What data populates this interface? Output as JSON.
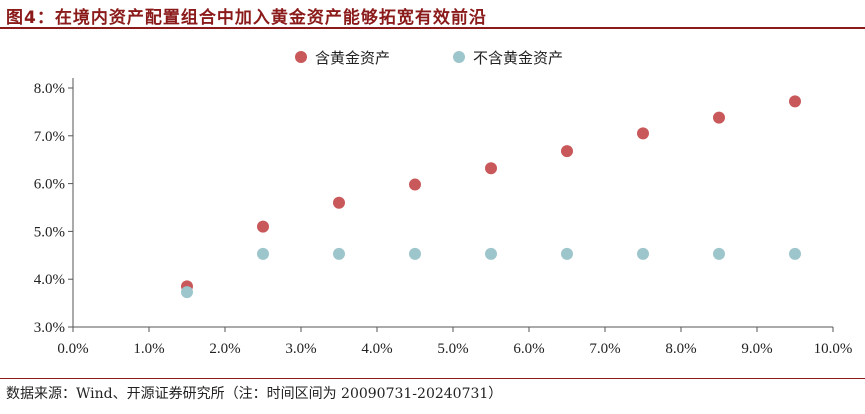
{
  "header": {
    "title": "图4：在境内资产配置组合中加入黄金资产能够拓宽有效前沿"
  },
  "footer": {
    "source": "数据来源：Wind、开源证券研究所（注：时间区间为 20090731-20240731）"
  },
  "chart_data": {
    "type": "scatter",
    "title": "",
    "xlabel": "",
    "ylabel": "",
    "xlim": [
      0.0,
      10.0
    ],
    "ylim": [
      3.0,
      8.0
    ],
    "x_ticks": [
      "0.0%",
      "1.0%",
      "2.0%",
      "3.0%",
      "4.0%",
      "5.0%",
      "6.0%",
      "7.0%",
      "8.0%",
      "9.0%",
      "10.0%"
    ],
    "y_ticks": [
      "3.0%",
      "4.0%",
      "5.0%",
      "6.0%",
      "7.0%",
      "8.0%"
    ],
    "grid": false,
    "legend_position": "top-center",
    "series": [
      {
        "name": "含黄金资产",
        "color": "#c9585a",
        "x": [
          1.5,
          2.5,
          3.5,
          4.5,
          5.5,
          6.5,
          7.5,
          8.5,
          9.5
        ],
        "y": [
          3.85,
          5.1,
          5.6,
          5.98,
          6.32,
          6.68,
          7.05,
          7.38,
          7.72
        ]
      },
      {
        "name": "不含黄金资产",
        "color": "#9dc6cc",
        "x": [
          1.5,
          2.5,
          3.5,
          4.5,
          5.5,
          6.5,
          7.5,
          8.5,
          9.5
        ],
        "y": [
          3.73,
          4.53,
          4.53,
          4.53,
          4.53,
          4.53,
          4.53,
          4.53,
          4.53
        ]
      }
    ]
  }
}
